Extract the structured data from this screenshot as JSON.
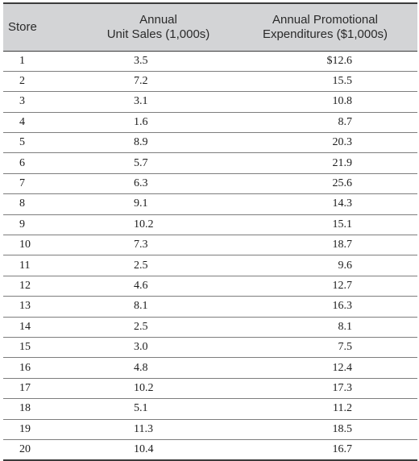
{
  "table": {
    "headers": {
      "store": "Store",
      "sales_line1": "Annual",
      "sales_line2": "Unit Sales (1,000s)",
      "promo_line1": "Annual Promotional",
      "promo_line2": "Expenditures ($1,000s)"
    },
    "rows": [
      {
        "store": "1",
        "sales": "3.5",
        "promo": "$12.6"
      },
      {
        "store": "2",
        "sales": "7.2",
        "promo": "15.5"
      },
      {
        "store": "3",
        "sales": "3.1",
        "promo": "10.8"
      },
      {
        "store": "4",
        "sales": "1.6",
        "promo": "8.7"
      },
      {
        "store": "5",
        "sales": "8.9",
        "promo": "20.3"
      },
      {
        "store": "6",
        "sales": "5.7",
        "promo": "21.9"
      },
      {
        "store": "7",
        "sales": "6.3",
        "promo": "25.6"
      },
      {
        "store": "8",
        "sales": "9.1",
        "promo": "14.3"
      },
      {
        "store": "9",
        "sales": "10.2",
        "promo": "15.1"
      },
      {
        "store": "10",
        "sales": "7.3",
        "promo": "18.7"
      },
      {
        "store": "11",
        "sales": "2.5",
        "promo": "9.6"
      },
      {
        "store": "12",
        "sales": "4.6",
        "promo": "12.7"
      },
      {
        "store": "13",
        "sales": "8.1",
        "promo": "16.3"
      },
      {
        "store": "14",
        "sales": "2.5",
        "promo": "8.1"
      },
      {
        "store": "15",
        "sales": "3.0",
        "promo": "7.5"
      },
      {
        "store": "16",
        "sales": "4.8",
        "promo": "12.4"
      },
      {
        "store": "17",
        "sales": "10.2",
        "promo": "17.3"
      },
      {
        "store": "18",
        "sales": "5.1",
        "promo": "11.2"
      },
      {
        "store": "19",
        "sales": "11.3",
        "promo": "18.5"
      },
      {
        "store": "20",
        "sales": "10.4",
        "promo": "16.7"
      }
    ]
  }
}
